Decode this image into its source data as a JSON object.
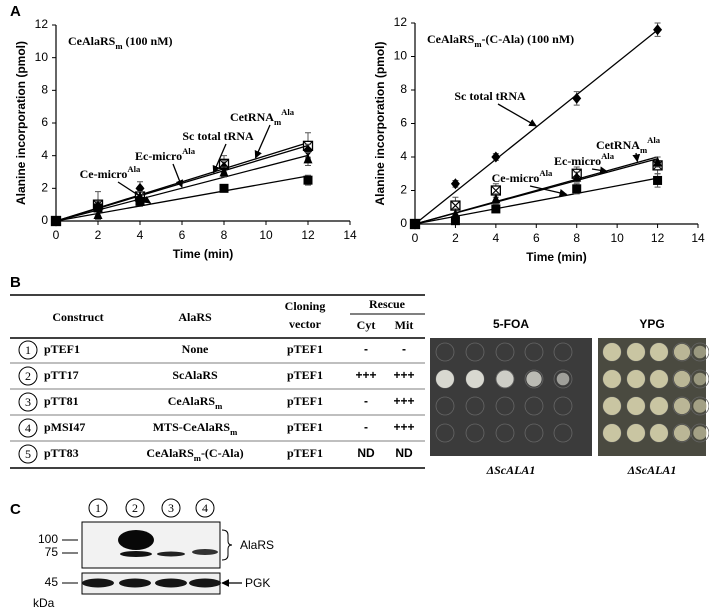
{
  "panel_labels": [
    "A",
    "B",
    "C"
  ],
  "chart_data": [
    {
      "type": "line",
      "title": [
        {
          "text": "CeAlaRS"
        },
        {
          "text": "m",
          "sub": true
        },
        {
          "text": " (100 nM)"
        }
      ],
      "x_label": "Time (min)",
      "y_label": "Alanine incorporation (pmol)",
      "x": [
        0,
        2,
        4,
        8,
        12
      ],
      "xlim": [
        0,
        14
      ],
      "xticks": [
        0,
        2,
        4,
        6,
        8,
        10,
        12,
        14
      ],
      "ylim": [
        0,
        12
      ],
      "yticks": [
        0,
        2,
        4,
        6,
        8,
        10,
        12
      ],
      "series": [
        {
          "name": [
            {
              "text": "CetRNA"
            },
            {
              "text": "m",
              "sub": true
            },
            {
              "text": "Ala",
              "sup": true
            }
          ],
          "marker": "crossed-square",
          "color": "#000000",
          "values": [
            0,
            1.0,
            1.5,
            3.5,
            4.6
          ],
          "errors": [
            0.1,
            0.8,
            0.6,
            0.5,
            0.8
          ]
        },
        {
          "name": [
            {
              "text": "Sc total tRNA"
            }
          ],
          "marker": "diamond",
          "color": "#000000",
          "values": [
            0,
            0.9,
            2.0,
            3.3,
            4.3
          ],
          "errors": [
            0.1,
            0.3,
            0.4,
            0.4,
            0.4
          ]
        },
        {
          "name": [
            {
              "text": "Ec-micro"
            },
            {
              "text": "Ala",
              "sup": true
            }
          ],
          "marker": "triangle",
          "color": "#000000",
          "values": [
            0,
            0.4,
            1.5,
            3.0,
            3.8
          ],
          "errors": [
            0.1,
            0.3,
            0.3,
            0.3,
            0.4
          ]
        },
        {
          "name": [
            {
              "text": "Ce-micro"
            },
            {
              "text": "Ala",
              "sup": true
            }
          ],
          "marker": "square",
          "color": "#000000",
          "values": [
            0,
            0.8,
            1.2,
            2.0,
            2.5
          ],
          "errors": [
            0.1,
            0.2,
            0.2,
            0.2,
            0.3
          ]
        }
      ]
    },
    {
      "type": "line",
      "title": [
        {
          "text": "CeAlaRS"
        },
        {
          "text": "m",
          "sub": true
        },
        {
          "text": "-(C-Ala) (100 nM)"
        }
      ],
      "x_label": "Time (min)",
      "y_label": "Alanine incorporation (pmol)",
      "x": [
        0,
        2,
        4,
        8,
        12
      ],
      "xlim": [
        0,
        14
      ],
      "xticks": [
        0,
        2,
        4,
        6,
        8,
        10,
        12,
        14
      ],
      "ylim": [
        0,
        12
      ],
      "yticks": [
        0,
        2,
        4,
        6,
        8,
        10,
        12
      ],
      "series": [
        {
          "name": [
            {
              "text": "Sc total tRNA"
            }
          ],
          "marker": "diamond",
          "color": "#000000",
          "values": [
            0,
            2.4,
            4.0,
            7.5,
            11.6
          ],
          "errors": [
            0.1,
            0.2,
            0.2,
            0.4,
            0.4
          ]
        },
        {
          "name": [
            {
              "text": "CetRNA"
            },
            {
              "text": "m",
              "sub": true
            },
            {
              "text": "Ala",
              "sup": true
            }
          ],
          "marker": "crossed-square",
          "color": "#000000",
          "values": [
            0,
            1.1,
            2.0,
            3.0,
            3.5
          ],
          "errors": [
            0.1,
            0.5,
            0.4,
            0.4,
            0.5
          ]
        },
        {
          "name": [
            {
              "text": "Ec-micro"
            },
            {
              "text": "Ala",
              "sup": true
            }
          ],
          "marker": "triangle",
          "color": "#000000",
          "values": [
            0,
            0.6,
            1.5,
            2.8,
            3.7
          ],
          "errors": [
            0.1,
            0.3,
            0.3,
            0.3,
            0.3
          ]
        },
        {
          "name": [
            {
              "text": "Ce-micro"
            },
            {
              "text": "Ala",
              "sup": true
            }
          ],
          "marker": "square",
          "color": "#000000",
          "values": [
            0,
            0.2,
            0.9,
            2.1,
            2.6
          ],
          "errors": [
            0.1,
            0.2,
            0.2,
            0.3,
            0.4
          ]
        }
      ]
    }
  ],
  "table": {
    "headers": {
      "construct": "Construct",
      "alars": "AlaRS",
      "vector": [
        "Cloning",
        "vector"
      ],
      "rescue": "Rescue",
      "cyt": "Cyt",
      "mit": "Mit"
    },
    "rows": [
      {
        "number": "1",
        "construct": "pTEF1",
        "alars": [
          {
            "text": "None"
          }
        ],
        "vector": "pTEF1",
        "cyt": "-",
        "mit": "-"
      },
      {
        "number": "2",
        "construct": "pTT17",
        "alars": [
          {
            "text": "ScAlaRS"
          }
        ],
        "vector": "pTEF1",
        "cyt": "+++",
        "mit": "+++"
      },
      {
        "number": "3",
        "construct": "pTT81",
        "alars": [
          {
            "text": "CeAlaRS"
          },
          {
            "text": "m",
            "sub": true
          }
        ],
        "vector": "pTEF1",
        "cyt": "-",
        "mit": "+++"
      },
      {
        "number": "4",
        "construct": "pMSI47",
        "alars": [
          {
            "text": "MTS-CeAlaRS"
          },
          {
            "text": "m",
            "sub": true
          }
        ],
        "vector": "pTEF1",
        "cyt": "-",
        "mit": "+++"
      },
      {
        "number": "5",
        "construct": "pTT83",
        "alars": [
          {
            "text": "CeAlaRS"
          },
          {
            "text": "m",
            "sub": true
          },
          {
            "text": "-(C-Ala)"
          }
        ],
        "vector": "pTEF1",
        "cyt": "ND",
        "mit": "ND"
      }
    ]
  },
  "plates": [
    {
      "title": "5-FOA",
      "caption": "ΔScALA1"
    },
    {
      "title": "YPG",
      "caption": "ΔScALA1"
    }
  ],
  "blot": {
    "lanes": [
      "1",
      "2",
      "3",
      "4"
    ],
    "markers": [
      "100",
      "75",
      "45"
    ],
    "unit": "kDa",
    "labels": [
      "AlaRS",
      "PGK"
    ]
  }
}
